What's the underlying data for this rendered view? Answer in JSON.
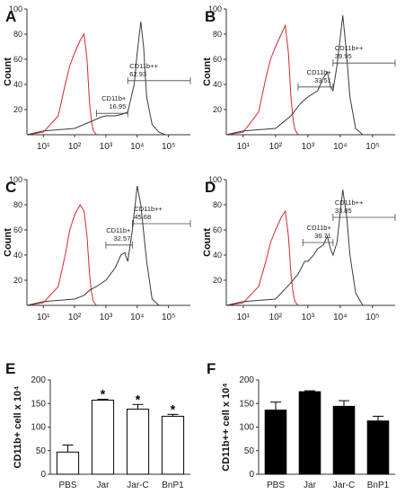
{
  "chart_data": [
    {
      "type": "line",
      "panel_label": "A",
      "ylabel": "Count",
      "xscale": "log",
      "xlim": [
        3,
        500000
      ],
      "ylim": [
        0,
        100
      ],
      "yticks": [
        20,
        40,
        60,
        80,
        100
      ],
      "xticks": [
        "10¹",
        "10²",
        "10³",
        "10⁴",
        "10⁵"
      ],
      "series": [
        {
          "color": "#d9262e",
          "x": [
            3,
            10,
            30,
            50,
            70,
            100,
            150,
            200,
            250,
            300,
            350,
            400,
            500
          ],
          "y": [
            0,
            2,
            15,
            40,
            55,
            65,
            75,
            80,
            60,
            25,
            10,
            3,
            0
          ]
        },
        {
          "color": "#3a3a3a",
          "x": [
            3,
            10,
            100,
            300,
            700,
            1000,
            2000,
            3000,
            5000,
            8000,
            10000,
            13000,
            16000,
            20000,
            30000,
            50000,
            80000
          ],
          "y": [
            0,
            3,
            5,
            10,
            14,
            15,
            15,
            16,
            18,
            40,
            65,
            90,
            70,
            30,
            8,
            2,
            0
          ]
        }
      ],
      "gates": [
        {
          "label": "CD11b+",
          "value": "16.95",
          "from": 500,
          "to": 5000,
          "level": 17
        },
        {
          "label": "CD11b++",
          "value": "62.93",
          "from": 5000,
          "to": 500000,
          "level": 43
        }
      ]
    },
    {
      "type": "line",
      "panel_label": "B",
      "ylabel": "Count",
      "xscale": "log",
      "xlim": [
        3,
        500000
      ],
      "ylim": [
        0,
        100
      ],
      "yticks": [
        20,
        40,
        60,
        80,
        100
      ],
      "xticks": [
        "10¹",
        "10²",
        "10³",
        "10⁴",
        "10⁵"
      ],
      "series": [
        {
          "color": "#d9262e",
          "x": [
            3,
            10,
            30,
            50,
            70,
            100,
            150,
            200,
            250,
            300,
            350,
            400,
            500
          ],
          "y": [
            0,
            2,
            18,
            45,
            60,
            70,
            80,
            87,
            65,
            30,
            12,
            4,
            0
          ]
        },
        {
          "color": "#3a3a3a",
          "x": [
            3,
            10,
            100,
            300,
            600,
            1000,
            2000,
            3000,
            4000,
            5000,
            6000,
            8000,
            12000,
            15000,
            20000,
            30000,
            50000
          ],
          "y": [
            0,
            3,
            5,
            15,
            25,
            30,
            35,
            45,
            50,
            38,
            35,
            55,
            95,
            70,
            30,
            5,
            0
          ]
        }
      ],
      "gates": [
        {
          "label": "CD11b+",
          "value": "33.51",
          "from": 500,
          "to": 6000,
          "level": 38
        },
        {
          "label": "CD11b++",
          "value": "39.95",
          "from": 6000,
          "to": 500000,
          "level": 57
        }
      ]
    },
    {
      "type": "line",
      "panel_label": "C",
      "ylabel": "Count",
      "xscale": "log",
      "xlim": [
        3,
        500000
      ],
      "ylim": [
        0,
        100
      ],
      "yticks": [
        20,
        40,
        60,
        80,
        100
      ],
      "xticks": [
        "10¹",
        "10²",
        "10³",
        "10⁴",
        "10⁵"
      ],
      "series": [
        {
          "color": "#d9262e",
          "x": [
            3,
            10,
            30,
            50,
            70,
            100,
            150,
            200,
            250,
            300,
            350,
            400,
            500
          ],
          "y": [
            0,
            2,
            15,
            40,
            60,
            72,
            80,
            75,
            55,
            25,
            10,
            3,
            0
          ]
        },
        {
          "color": "#3a3a3a",
          "x": [
            3,
            10,
            100,
            200,
            300,
            500,
            1000,
            2000,
            3000,
            4000,
            5000,
            7000,
            10000,
            13000,
            20000,
            30000,
            50000
          ],
          "y": [
            0,
            3,
            5,
            8,
            12,
            15,
            20,
            30,
            40,
            42,
            35,
            60,
            95,
            80,
            35,
            5,
            0
          ]
        }
      ],
      "gates": [
        {
          "label": "CD11b+",
          "value": "32.57",
          "from": 1000,
          "to": 7000,
          "level": 48
        },
        {
          "label": "CD11b++",
          "value": "45.68",
          "from": 7000,
          "to": 500000,
          "level": 65
        }
      ]
    },
    {
      "type": "line",
      "panel_label": "D",
      "ylabel": "Count",
      "xscale": "log",
      "xlim": [
        3,
        500000
      ],
      "ylim": [
        0,
        100
      ],
      "yticks": [
        20,
        40,
        60,
        80,
        100
      ],
      "xticks": [
        "10¹",
        "10²",
        "10³",
        "10⁴",
        "10⁵"
      ],
      "series": [
        {
          "color": "#d9262e",
          "x": [
            3,
            10,
            30,
            50,
            70,
            100,
            150,
            200,
            250,
            300,
            350,
            400,
            500
          ],
          "y": [
            0,
            2,
            15,
            35,
            50,
            60,
            70,
            75,
            55,
            25,
            10,
            3,
            0
          ]
        },
        {
          "color": "#3a3a3a",
          "x": [
            3,
            10,
            100,
            300,
            500,
            800,
            1000,
            1500,
            2000,
            3000,
            4000,
            5000,
            6000,
            8000,
            12000,
            16000,
            20000,
            30000,
            50000
          ],
          "y": [
            0,
            3,
            5,
            18,
            25,
            35,
            35,
            40,
            45,
            48,
            55,
            45,
            40,
            50,
            92,
            70,
            40,
            10,
            0
          ]
        }
      ],
      "gates": [
        {
          "label": "CD11b+",
          "value": "36.71",
          "from": 700,
          "to": 6000,
          "level": 50
        },
        {
          "label": "CD11b++",
          "value": "33.85",
          "from": 6000,
          "to": 500000,
          "level": 70
        }
      ]
    },
    {
      "type": "bar",
      "panel_label": "E",
      "ylabel": "CD11b+ cell x 10⁴",
      "categories": [
        "PBS",
        "Jar",
        "Jar-C",
        "BnP1"
      ],
      "values": [
        47,
        157,
        138,
        123
      ],
      "errors": [
        15,
        2,
        10,
        4
      ],
      "significance": [
        "",
        "*",
        "*",
        "*"
      ],
      "ylim": [
        0,
        200
      ],
      "yticks": [
        0,
        50,
        100,
        150,
        200
      ],
      "fill": "#ffffff"
    },
    {
      "type": "bar",
      "panel_label": "F",
      "ylabel": "CD11b++ cell x 10⁴",
      "categories": [
        "PBS",
        "Jar",
        "Jar-C",
        "BnP1"
      ],
      "values": [
        136,
        175,
        144,
        113
      ],
      "errors": [
        17,
        2,
        12,
        10
      ],
      "ylim": [
        0,
        200
      ],
      "yticks": [
        0,
        50,
        100,
        150,
        200
      ],
      "fill": "#000000"
    }
  ]
}
